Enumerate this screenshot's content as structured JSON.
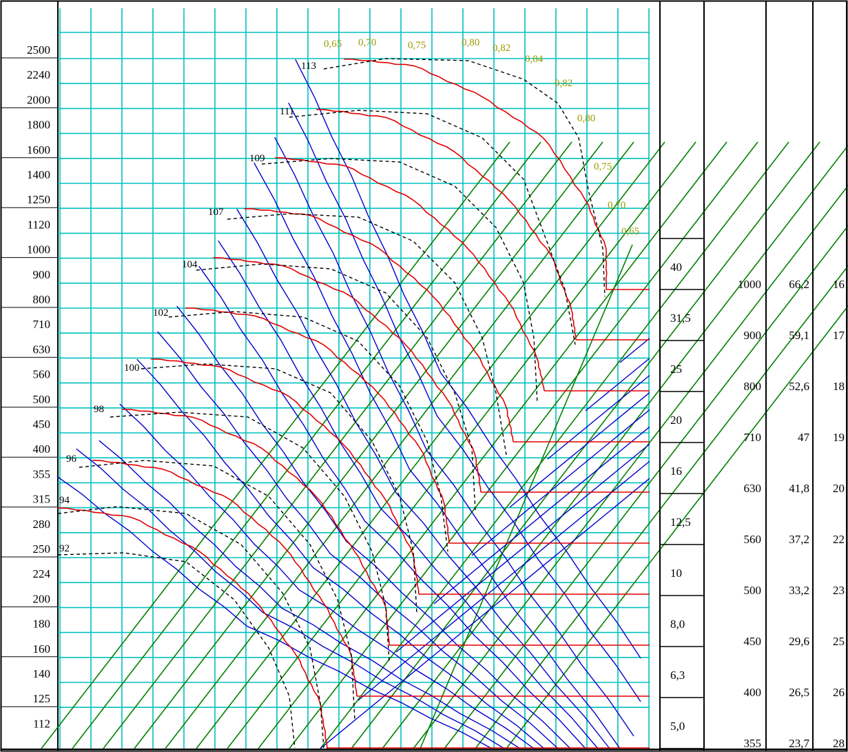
{
  "chart_data": {
    "type": "line",
    "y_scale_labels": [
      "2500",
      "2240",
      "2000",
      "1800",
      "1600",
      "1400",
      "1250",
      "1120",
      "1000",
      "900",
      "800",
      "710",
      "630",
      "560",
      "500",
      "450",
      "400",
      "355",
      "315",
      "280",
      "250",
      "224",
      "200",
      "180",
      "160",
      "140",
      "125",
      "112"
    ],
    "efficiency_labels_top": [
      "0,65",
      "0,70",
      "0,75",
      "0,80",
      "0,82",
      "0,84"
    ],
    "efficiency_labels_right": [
      "0,82",
      "0,80",
      "0,75",
      "0,70",
      "0,65"
    ],
    "noise_level_labels": [
      "113",
      "111",
      "109",
      "107",
      "104",
      "102",
      "100",
      "98",
      "96",
      "94",
      "92"
    ],
    "speed_column": [
      "40",
      "31,5",
      "25",
      "20",
      "16",
      "12,5",
      "10",
      "8,0",
      "6,3",
      "5,0"
    ],
    "table_rows": [
      {
        "d": "1000",
        "v": "66,2",
        "n": "16"
      },
      {
        "d": "900",
        "v": "59,1",
        "n": "17"
      },
      {
        "d": "800",
        "v": "52,6",
        "n": "18"
      },
      {
        "d": "710",
        "v": "47",
        "n": "19"
      },
      {
        "d": "630",
        "v": "41,8",
        "n": "20"
      },
      {
        "d": "560",
        "v": "37,2",
        "n": "22"
      },
      {
        "d": "500",
        "v": "33,2",
        "n": "23"
      },
      {
        "d": "450",
        "v": "29,6",
        "n": "25"
      },
      {
        "d": "400",
        "v": "26,5",
        "n": "26"
      },
      {
        "d": "355",
        "v": "23,7",
        "n": "28"
      }
    ],
    "colors": {
      "grid": "#00c0c0",
      "efficiency_lines": "#008000",
      "speed_lines": "#0000cc",
      "pressure_curves": "#e00000",
      "noise_curves": "#000000",
      "efficiency_label": "#999900"
    }
  }
}
